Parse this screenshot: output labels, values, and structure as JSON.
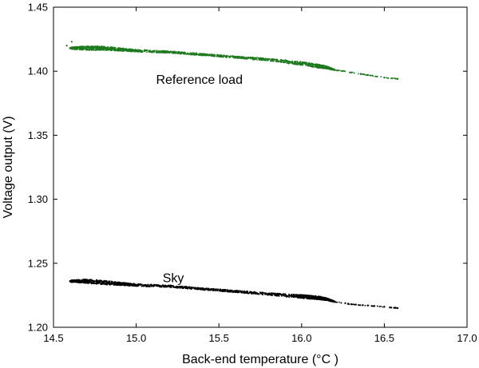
{
  "chart_data": {
    "type": "scatter",
    "xlabel": "Back-end temperature    (°C )",
    "ylabel": "Voltage output  (V)",
    "xlim": [
      14.5,
      17.0
    ],
    "ylim": [
      1.2,
      1.45
    ],
    "xticks": [
      "14.5",
      "15.0",
      "15.5",
      "16.0",
      "16.5",
      "17.0"
    ],
    "yticks": [
      "1.20",
      "1.25",
      "1.30",
      "1.35",
      "1.40",
      "1.45"
    ],
    "grid": false,
    "series": [
      {
        "color": "#1f7a1f",
        "x": [
          14.6,
          14.7,
          14.8,
          14.9,
          15.0,
          15.2,
          15.4,
          15.6,
          15.8,
          16.0,
          16.1,
          16.15,
          16.2,
          16.3,
          16.4,
          16.5,
          16.58
        ],
        "y": [
          1.418,
          1.418,
          1.418,
          1.417,
          1.416,
          1.415,
          1.413,
          1.411,
          1.409,
          1.406,
          1.404,
          1.403,
          1.401,
          1.399,
          1.397,
          1.395,
          1.394
        ],
        "spread": [
          0.0008,
          0.0016,
          0.0016,
          0.0012,
          0.0009,
          0.0008,
          0.0008,
          0.0008,
          0.0009,
          0.0014,
          0.0014,
          0.001,
          0.0004,
          0.0003,
          0.0003,
          0.0003,
          0.0003
        ]
      },
      {
        "color": "#000000",
        "x": [
          14.6,
          14.7,
          14.8,
          14.9,
          15.0,
          15.2,
          15.4,
          15.6,
          15.8,
          16.0,
          16.1,
          16.15,
          16.2,
          16.3,
          16.4,
          16.5,
          16.58
        ],
        "y": [
          1.236,
          1.236,
          1.235,
          1.234,
          1.233,
          1.232,
          1.23,
          1.228,
          1.226,
          1.224,
          1.223,
          1.222,
          1.22,
          1.218,
          1.217,
          1.216,
          1.215
        ],
        "spread": [
          0.0008,
          0.0016,
          0.0016,
          0.0012,
          0.0009,
          0.0008,
          0.0008,
          0.0008,
          0.0009,
          0.0014,
          0.0014,
          0.001,
          0.0004,
          0.0003,
          0.0003,
          0.0003,
          0.0003
        ]
      }
    ],
    "annotations": [
      {
        "text": "Reference load",
        "x": 15.12,
        "y": 1.394
      },
      {
        "text": "Sky",
        "x": 15.16,
        "y": 1.239
      }
    ],
    "extra_points": [
      {
        "series": 0,
        "x": 14.61,
        "y": 1.423
      },
      {
        "series": 0,
        "x": 14.58,
        "y": 1.42
      }
    ]
  }
}
